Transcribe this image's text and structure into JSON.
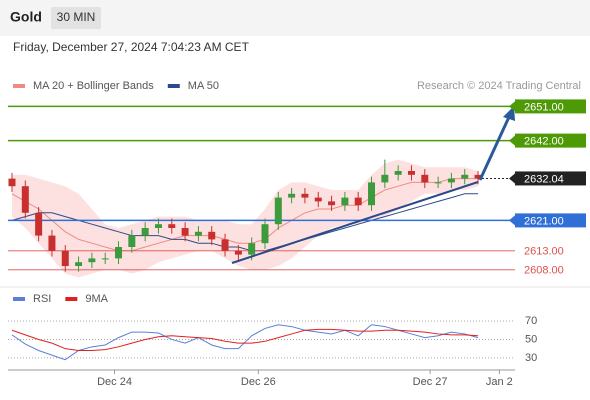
{
  "header": {
    "symbol": "Gold",
    "interval": "30 MIN",
    "timestamp": "Friday, December 27, 2024 7:04:23 AM CET",
    "source": "Research © 2024 Trading Central"
  },
  "chart_data": [
    {
      "type": "candlestick",
      "open": [
        2632,
        2630,
        2623,
        2617,
        2613,
        2609,
        2610,
        2611,
        2611,
        2614,
        2617,
        2619,
        2620,
        2619,
        2617,
        2618,
        2616,
        2613,
        2612,
        2615,
        2620,
        2627,
        2628,
        2627,
        2626,
        2625,
        2627,
        2625,
        2631,
        2633,
        2634,
        2633,
        2631,
        2631,
        2632,
        2633
      ],
      "high": [
        2633.5,
        2631.5,
        2624.5,
        2618.5,
        2614.5,
        2611.5,
        2612.5,
        2612.5,
        2615.5,
        2618.5,
        2620.5,
        2621.5,
        2621.5,
        2620.5,
        2619.5,
        2619.5,
        2617.5,
        2614.5,
        2616.5,
        2621.5,
        2628.5,
        2629.5,
        2629.5,
        2628.5,
        2627.5,
        2628.5,
        2628.5,
        2632.5,
        2637,
        2635.5,
        2635.5,
        2634.5,
        2632.5,
        2633.5,
        2634.5,
        2634
      ],
      "low": [
        2628.5,
        2621.5,
        2615.5,
        2611.5,
        2607.5,
        2607.5,
        2608.5,
        2609.5,
        2609.5,
        2612.5,
        2615.5,
        2617.5,
        2617.5,
        2615.5,
        2615.5,
        2614.5,
        2611.5,
        2610.5,
        2610.5,
        2613.5,
        2618.5,
        2625.5,
        2625.5,
        2624.5,
        2623.5,
        2623.5,
        2623.5,
        2623.5,
        2629.5,
        2631.5,
        2631.5,
        2629.5,
        2629.5,
        2629.5,
        2630.5,
        2630.5
      ],
      "close": [
        2630,
        2623,
        2617,
        2613,
        2609,
        2610,
        2611,
        2611,
        2614,
        2617,
        2619,
        2620,
        2619,
        2617,
        2618,
        2616,
        2613,
        2612,
        2615,
        2620,
        2627,
        2628,
        2627,
        2626,
        2625,
        2627,
        2625,
        2631,
        2633,
        2634,
        2633,
        2631,
        2631,
        2632,
        2633,
        2632.04
      ],
      "up_color": "#3d9a3d",
      "down_color": "#c83030",
      "series": [
        {
          "name": "MA 20 + Bollinger Bands",
          "color": "#f08a80",
          "values": [
            2628,
            2626,
            2624,
            2621,
            2618,
            2616,
            2615,
            2614,
            2613,
            2613,
            2614,
            2615,
            2616,
            2617,
            2617,
            2617,
            2616,
            2615,
            2615,
            2616,
            2619,
            2621,
            2623,
            2624,
            2624,
            2625,
            2625,
            2627,
            2629,
            2630,
            2631,
            2631,
            2631,
            2632,
            2632,
            2632
          ],
          "upper": [
            2633,
            2633,
            2632,
            2631,
            2630,
            2628,
            2624,
            2620,
            2619,
            2620,
            2621,
            2622,
            2622,
            2622,
            2621,
            2621,
            2621,
            2620,
            2620,
            2624,
            2629,
            2631,
            2631,
            2630,
            2629,
            2629,
            2629,
            2633,
            2636,
            2637,
            2636,
            2635,
            2635,
            2635,
            2635,
            2634
          ],
          "lower": [
            2622,
            2619,
            2615,
            2611,
            2607,
            2606,
            2607,
            2608,
            2608,
            2607,
            2608,
            2610,
            2611,
            2612,
            2613,
            2613,
            2611,
            2609,
            2608,
            2608,
            2609,
            2611,
            2614,
            2617,
            2619,
            2620,
            2620,
            2621,
            2622,
            2624,
            2626,
            2628,
            2628,
            2629,
            2629,
            2630
          ]
        },
        {
          "name": "MA 50",
          "color": "#2b4a8a",
          "values": [
            2621,
            2622,
            2623,
            2623,
            2622,
            2621,
            2620,
            2619,
            2618,
            2617,
            2617,
            2617,
            2616,
            2616,
            2615,
            2615,
            2614,
            2614,
            2613,
            2613,
            2614,
            2615,
            2616,
            2617,
            2618,
            2619,
            2620,
            2621,
            2622,
            2623,
            2624,
            2625,
            2626,
            2627,
            2628,
            2628
          ]
        }
      ],
      "levels": [
        {
          "value": 2651,
          "label": "2651.00",
          "color": "#4e9a06",
          "boxed": true
        },
        {
          "value": 2642,
          "label": "2642.00",
          "color": "#4e9a06",
          "boxed": true
        },
        {
          "value": 2632.04,
          "label": "2632.04",
          "color": "#222222",
          "boxed": true,
          "dashed": true
        },
        {
          "value": 2621,
          "label": "2621.00",
          "color": "#2f6fd6",
          "boxed": true
        },
        {
          "value": 2613,
          "label": "2613.00",
          "color": "#e05050",
          "boxed": false
        },
        {
          "value": 2608,
          "label": "2608.00",
          "color": "#e05050",
          "boxed": false
        }
      ],
      "xlim": [
        -0.3,
        37.55
      ],
      "ylim": [
        2604,
        2654
      ]
    },
    {
      "type": "line",
      "series": [
        {
          "name": "RSI",
          "color": "#5b7fd6",
          "values": [
            55,
            45,
            38,
            33,
            28,
            38,
            42,
            44,
            52,
            58,
            58,
            57,
            50,
            46,
            52,
            44,
            40,
            40,
            54,
            62,
            66,
            64,
            60,
            58,
            56,
            60,
            54,
            66,
            64,
            60,
            56,
            52,
            54,
            58,
            56,
            52
          ]
        },
        {
          "name": "9MA",
          "color": "#e02020",
          "values": [
            60,
            55,
            50,
            46,
            40,
            38,
            38,
            39,
            42,
            46,
            50,
            53,
            54,
            53,
            52,
            51,
            48,
            46,
            46,
            48,
            52,
            56,
            60,
            61,
            61,
            60,
            59,
            59,
            60,
            60,
            59,
            58,
            56,
            55,
            55,
            54
          ]
        }
      ],
      "xlim": [
        -0.3,
        37.55
      ],
      "ylim": [
        19,
        82
      ],
      "yticks": [
        30,
        50,
        70
      ],
      "grid": true,
      "xticks": [
        {
          "value": 7.7,
          "label": "Dec 24"
        },
        {
          "value": 18.5,
          "label": "Dec 26"
        },
        {
          "value": 31.4,
          "label": "Dec 27"
        },
        {
          "value": 36.6,
          "label": "Jan 2"
        }
      ]
    }
  ]
}
